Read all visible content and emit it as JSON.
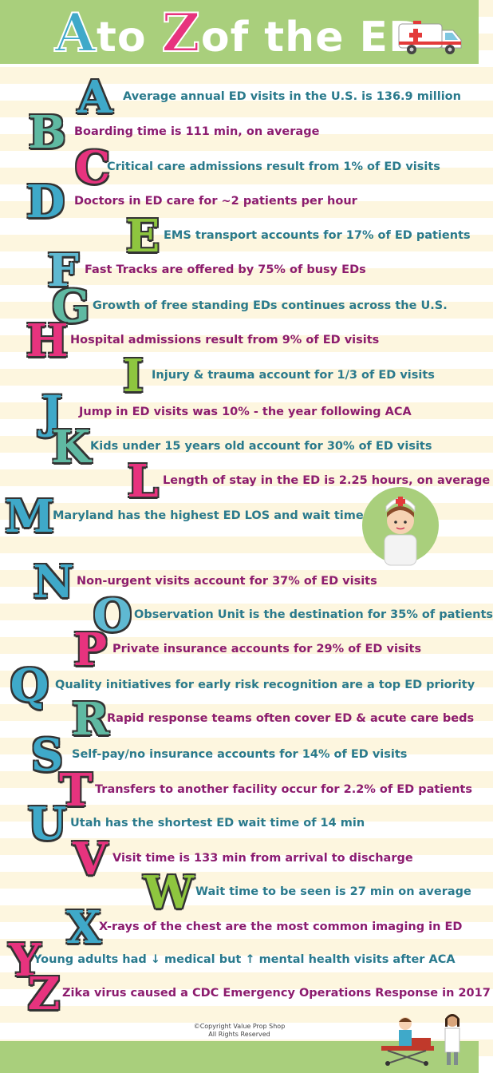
{
  "header": {
    "title_a": "A",
    "title_to": "to",
    "title_z": "Z",
    "title_rest": "of the ED",
    "ambulance_icon": "ambulance-icon"
  },
  "items": [
    {
      "letter": "A",
      "text": "Average annual ED visits in the U.S. is 136.9 million",
      "color": "#3fa9c9"
    },
    {
      "letter": "B",
      "text": "Boarding time is 111 min, on average",
      "color": "#5fb9a2"
    },
    {
      "letter": "C",
      "text": "Critical care admissions result from 1% of ED visits",
      "color": "#e7337e"
    },
    {
      "letter": "D",
      "text": "Doctors in ED care for ~2 patients per hour",
      "color": "#3fa9c9"
    },
    {
      "letter": "E",
      "text": "EMS transport accounts for 17% of ED patients",
      "color": "#8ec63f"
    },
    {
      "letter": "F",
      "text": "Fast Tracks are offered by 75% of busy EDs",
      "color": "#5fb9d2"
    },
    {
      "letter": "G",
      "text": "Growth of free standing EDs continues across the U.S.",
      "color": "#5fb9a2"
    },
    {
      "letter": "H",
      "text": "Hospital admissions result from 9% of ED visits",
      "color": "#e7337e"
    },
    {
      "letter": "I",
      "text": "Injury & trauma account for 1/3 of ED visits",
      "color": "#8ec63f"
    },
    {
      "letter": "J",
      "text": "Jump in ED visits was 10% - the year following ACA",
      "color": "#3fa9c9"
    },
    {
      "letter": "K",
      "text": "Kids under 15 years old account for 30% of ED visits",
      "color": "#5fb9a2"
    },
    {
      "letter": "L",
      "text": "Length of stay in the ED is 2.25 hours, on average",
      "color": "#e7337e"
    },
    {
      "letter": "M",
      "text": "Maryland has the highest ED LOS and wait times",
      "color": "#3fa9c9"
    },
    {
      "letter": "N",
      "text": "Non-urgent visits account for 37% of ED visits",
      "color": "#3fa9c9"
    },
    {
      "letter": "O",
      "text": "Observation Unit is the destination for 35% of patients",
      "color": "#5fb9d2"
    },
    {
      "letter": "P",
      "text": "Private insurance accounts for 29% of ED visits",
      "color": "#e7337e"
    },
    {
      "letter": "Q",
      "text": "Quality initiatives for early risk recognition are a top ED priority",
      "color": "#3fa9c9"
    },
    {
      "letter": "R",
      "text": "Rapid response teams often cover ED & acute care beds",
      "color": "#5fb9a2"
    },
    {
      "letter": "S",
      "text": "Self-pay/no insurance accounts for 14% of ED visits",
      "color": "#3fa9c9"
    },
    {
      "letter": "T",
      "text": "Transfers to another facility occur for 2.2% of ED patients",
      "color": "#e7337e"
    },
    {
      "letter": "U",
      "text": "Utah has the shortest ED wait time of 14 min",
      "color": "#3fa9c9"
    },
    {
      "letter": "V",
      "text": "Visit time is 133 min from arrival to discharge",
      "color": "#e7337e"
    },
    {
      "letter": "W",
      "text": "Wait time to be seen is 27 min on average",
      "color": "#8ec63f"
    },
    {
      "letter": "X",
      "text": "X-rays of the chest are the most common imaging in ED",
      "color": "#3fa9c9"
    },
    {
      "letter": "Y",
      "text": "Young adults had ↓ medical but ↑ mental health visits after ACA",
      "color": "#e7337e"
    },
    {
      "letter": "Z",
      "text": "Zika virus caused a CDC Emergency Operations Response in 2017",
      "color": "#e7337e"
    }
  ],
  "illustrations": {
    "nurse": "nurse-icon",
    "patient": "patient-on-stretcher-icon"
  },
  "footer": {
    "copyright_line1": "©Copyright Value Prop Shop",
    "copyright_line2": "All Rights Reserved"
  }
}
